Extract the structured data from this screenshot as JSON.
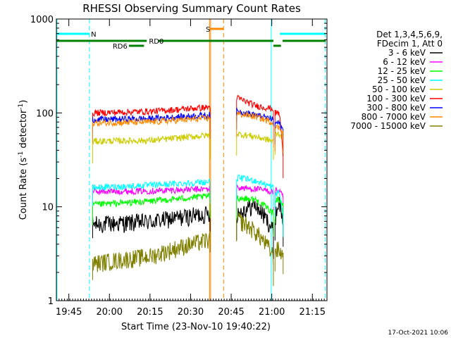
{
  "chart_data": {
    "type": "line",
    "title": "RHESSI Observing Summary Count Rates",
    "xlabel": "Start Time (23-Nov-10 19:40:22)",
    "ylabel": "Count Rate (s",
    "ylabel_sup1": "-1",
    "ylabel_mid": " detector",
    "ylabel_sup2": "-1",
    "ylabel_end": ")",
    "yscale": "log",
    "xlim_minutes": [
      0,
      100
    ],
    "ylim": [
      1,
      1000
    ],
    "x_ticks": [
      {
        "label": "19:45",
        "minute": 4.6
      },
      {
        "label": "20:00",
        "minute": 19.6
      },
      {
        "label": "20:15",
        "minute": 34.6
      },
      {
        "label": "20:30",
        "minute": 49.6
      },
      {
        "label": "20:45",
        "minute": 64.6
      },
      {
        "label": "21:00",
        "minute": 79.6
      },
      {
        "label": "21:15",
        "minute": 94.6
      }
    ],
    "y_ticks": [
      {
        "label": "1",
        "value": 1
      },
      {
        "label": "10",
        "value": 10
      },
      {
        "label": "100",
        "value": 100
      },
      {
        "label": "1000",
        "value": 1000
      }
    ],
    "legend_placement": "top-right",
    "legend_header": [
      "Det 1,3,4,5,6,9,",
      "FDecim 1, Att 0"
    ],
    "intervals": [
      {
        "start": 13.4,
        "end": 56.8
      },
      {
        "start": 66.6,
        "end": 80.2
      },
      {
        "start": 80.8,
        "end": 83.8
      }
    ],
    "series": [
      {
        "name": "3 - 6 keV",
        "color": "#000000",
        "segments": [
          [
            6.5,
            7.0,
            8.5
          ],
          [
            8.5,
            10.5,
            5.5
          ],
          [
            7.5,
            11.5,
            6.5
          ]
        ]
      },
      {
        "name": "6 - 12 keV",
        "color": "#ff00ff",
        "segments": [
          [
            14.5,
            14.8,
            15.5
          ],
          [
            16.0,
            15.5,
            14.5
          ],
          [
            15.0,
            15.0,
            12.5
          ]
        ]
      },
      {
        "name": "12 - 25 keV",
        "color": "#00ff00",
        "segments": [
          [
            10.5,
            11.5,
            13.0
          ],
          [
            12.5,
            12.0,
            8.5
          ],
          [
            12.0,
            12.0,
            10.5
          ]
        ]
      },
      {
        "name": "25 - 50 keV",
        "color": "#00ffff",
        "segments": [
          [
            16.0,
            17.0,
            18.5
          ],
          [
            20.5,
            19.0,
            16.0
          ],
          [
            13.5,
            14.5,
            7.5
          ]
        ]
      },
      {
        "name": "50 - 100 keV",
        "color": "#cccc00",
        "segments": [
          [
            50,
            51,
            58
          ],
          [
            60,
            56,
            50
          ],
          [
            60,
            60,
            55
          ]
        ]
      },
      {
        "name": "100 - 300 keV",
        "color": "#ff0000",
        "segments": [
          [
            100,
            104,
            115
          ],
          [
            145,
            120,
            110
          ],
          [
            100,
            100,
            32
          ]
        ]
      },
      {
        "name": "300 - 800 keV",
        "color": "#0000ff",
        "segments": [
          [
            85,
            87,
            95
          ],
          [
            105,
            95,
            85
          ],
          [
            78,
            78,
            65
          ]
        ]
      },
      {
        "name": "800 - 7000 keV",
        "color": "#ff8800",
        "segments": [
          [
            78,
            80,
            88
          ],
          [
            98,
            92,
            78
          ],
          [
            70,
            70,
            62
          ]
        ]
      },
      {
        "name": "7000 - 15000 keV",
        "color": "#808000",
        "segments": [
          [
            2.5,
            3.0,
            4.5
          ],
          [
            7.5,
            5.5,
            3.0
          ],
          [
            3.5,
            3.5,
            3.0
          ]
        ]
      }
    ],
    "flags": [
      {
        "name": "N",
        "color": "#00ffff",
        "level": 1,
        "segments": [
          [
            0,
            12.2
          ],
          [
            82.6,
            99.5
          ]
        ],
        "label_minute": 12.8
      },
      {
        "name": "S",
        "color": "#ff8800",
        "level": 2,
        "segments": [
          [
            56.8,
            61.8
          ]
        ],
        "label_minute": 55.2
      },
      {
        "name": "RD0",
        "color": "#008000",
        "level": 3,
        "segments": [
          [
            0,
            33.4
          ],
          [
            37.6,
            80.2
          ],
          [
            83.6,
            99.5
          ]
        ],
        "label_minute": 34.2
      },
      {
        "name": "RD6",
        "color": "#008000",
        "level": 4,
        "segments": [
          [
            26.8,
            32.4
          ],
          [
            80.2,
            83.0
          ]
        ],
        "label_minute": 20.8
      }
    ],
    "vertical_lines": [
      {
        "minute": 0.2,
        "color": "#00ffff",
        "style": "solid"
      },
      {
        "minute": 12.2,
        "color": "#00ffff",
        "style": "dashed"
      },
      {
        "minute": 56.6,
        "color": "#ff8800",
        "style": "solid"
      },
      {
        "minute": 57.0,
        "color": "#ff8800",
        "style": "solid"
      },
      {
        "minute": 61.8,
        "color": "#ff8800",
        "style": "dashed"
      },
      {
        "minute": 79.4,
        "color": "#00ffff",
        "style": "solid"
      },
      {
        "minute": 99.4,
        "color": "#00ffff",
        "style": "dashed"
      }
    ]
  },
  "footer": {
    "timestamp": "17-Oct-2021 10:06"
  }
}
